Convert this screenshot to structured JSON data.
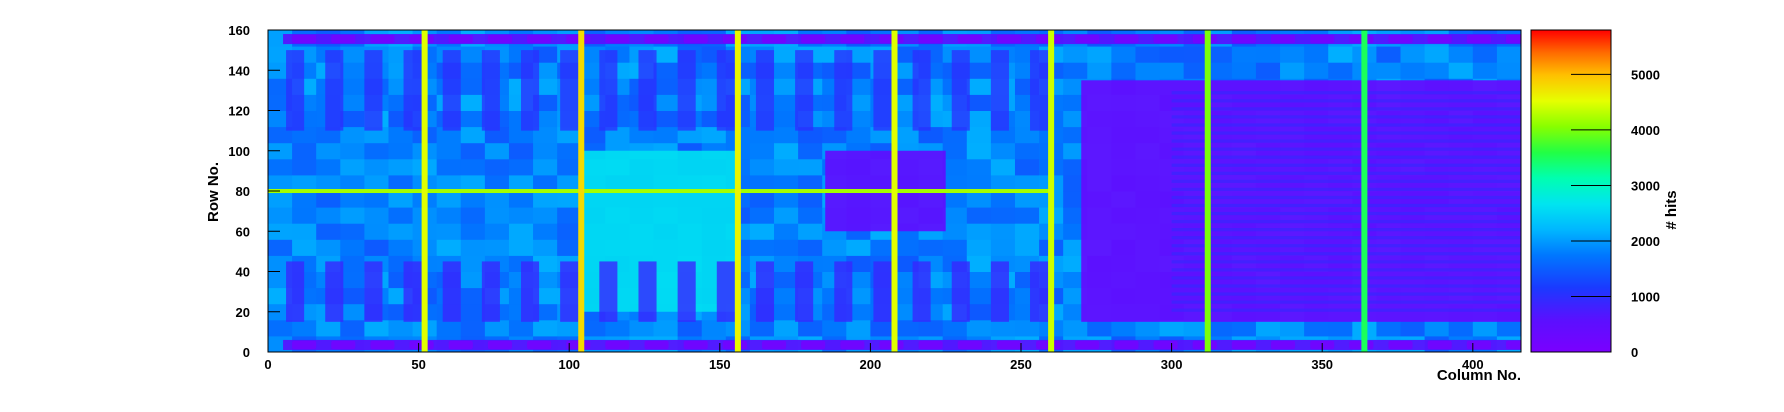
{
  "chart_data": {
    "type": "heatmap",
    "title": "",
    "xlabel": "Column No.",
    "ylabel": "Row No.",
    "zlabel": "# hits",
    "xlim": [
      0,
      416
    ],
    "ylim": [
      0,
      160
    ],
    "zlim": [
      0,
      5800
    ],
    "x_ticks": [
      0,
      50,
      100,
      150,
      200,
      250,
      300,
      350,
      400
    ],
    "y_ticks": [
      0,
      20,
      40,
      60,
      80,
      100,
      120,
      140,
      160
    ],
    "z_ticks": [
      0,
      1000,
      2000,
      3000,
      4000,
      5000
    ],
    "grid": false,
    "colorbar_position": "right",
    "background_level": 1800,
    "bright_columns": [
      {
        "x": 52,
        "level": 4500
      },
      {
        "x": 104,
        "level": 4800
      },
      {
        "x": 156,
        "level": 4600
      },
      {
        "x": 208,
        "level": 4500
      },
      {
        "x": 260,
        "level": 4400
      },
      {
        "x": 312,
        "level": 4000
      },
      {
        "x": 364,
        "level": 3500
      }
    ],
    "bright_rows": [
      {
        "y": 80,
        "x_range": [
          0,
          260
        ],
        "level": 4200
      }
    ],
    "regions": [
      {
        "label": "dense logic block",
        "x_range": [
          270,
          416
        ],
        "y_range": [
          15,
          135
        ],
        "level": 400
      },
      {
        "label": "central block",
        "x_range": [
          185,
          225
        ],
        "y_range": [
          60,
          100
        ],
        "level": 500
      },
      {
        "label": "left green region",
        "x_range": [
          104,
          156
        ],
        "y_range": [
          20,
          100
        ],
        "level": 2600
      },
      {
        "label": "top pad row",
        "x_range": [
          5,
          416
        ],
        "y_range": [
          153,
          158
        ],
        "level": 600
      },
      {
        "label": "bottom pad row",
        "x_range": [
          5,
          416
        ],
        "y_range": [
          1,
          6
        ],
        "level": 600
      }
    ]
  },
  "colors": {
    "palette": [
      "#6600cc",
      "#3322ff",
      "#0077ff",
      "#00ccff",
      "#00ffcc",
      "#33ff33",
      "#ccff00",
      "#ffdd00",
      "#ff8800",
      "#ff0000"
    ],
    "frame": "#000000"
  }
}
